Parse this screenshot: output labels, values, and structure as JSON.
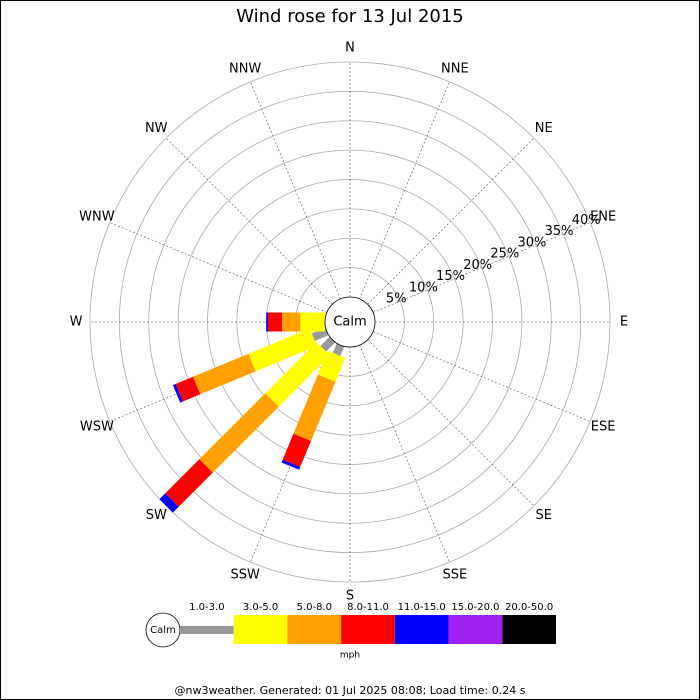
{
  "chart_data": {
    "type": "windrose",
    "title": "Wind rose for 13 Jul 2015",
    "calm_label": "Calm",
    "unit": "mph",
    "footer": "@nw3weather. Generated: 01 Jul 2025 08:08; Load time: 0.24 s",
    "directions": [
      "N",
      "NNE",
      "NE",
      "ENE",
      "E",
      "ESE",
      "SE",
      "SSE",
      "S",
      "SSW",
      "SW",
      "WSW",
      "W",
      "WNW",
      "NW",
      "NNW"
    ],
    "rlim": [
      0,
      40
    ],
    "rticks": [
      {
        "value": 5,
        "label": "5%"
      },
      {
        "value": 10,
        "label": "10%"
      },
      {
        "value": 15,
        "label": "15%"
      },
      {
        "value": 20,
        "label": "20%"
      },
      {
        "value": 25,
        "label": "25%"
      },
      {
        "value": 30,
        "label": "30%"
      },
      {
        "value": 35,
        "label": "35%"
      },
      {
        "value": 40,
        "label": "40%"
      }
    ],
    "series": [
      {
        "name": "1.0-3.0",
        "color": "#999999",
        "values": [
          0,
          0,
          0,
          0,
          0,
          0,
          0,
          0,
          0,
          1.7,
          2.2,
          2.5,
          0,
          0,
          0,
          0
        ]
      },
      {
        "name": "3.0-5.0",
        "color": "#ffff00",
        "values": [
          0,
          0,
          0,
          0,
          0,
          0,
          0,
          0,
          0,
          4.4,
          12.3,
          11.3,
          4.2,
          0,
          0,
          0
        ]
      },
      {
        "name": "5.0-8.0",
        "color": "#ffa000",
        "values": [
          0,
          0,
          0,
          0,
          0,
          0,
          0,
          0,
          0,
          10.9,
          15.9,
          10.2,
          3.1,
          0,
          0,
          0
        ]
      },
      {
        "name": "8.0-11.0",
        "color": "#ff0000",
        "values": [
          0,
          0,
          0,
          0,
          0,
          0,
          0,
          0,
          0,
          4.8,
          8.2,
          3.2,
          2.4,
          0,
          0,
          0
        ]
      },
      {
        "name": "11.0-15.0",
        "color": "#0000ff",
        "values": [
          0,
          0,
          0,
          0,
          0,
          0,
          0,
          0,
          0,
          0.5,
          1.4,
          0.5,
          0.3,
          0,
          0,
          0
        ]
      },
      {
        "name": "15.0-20.0",
        "color": "#a020f0",
        "values": [
          0,
          0,
          0,
          0,
          0,
          0,
          0,
          0,
          0,
          0,
          0,
          0,
          0,
          0,
          0,
          0
        ]
      },
      {
        "name": "20.0-50.0",
        "color": "#000000",
        "values": [
          0,
          0,
          0,
          0,
          0,
          0,
          0,
          0,
          0,
          0,
          0,
          0,
          0,
          0,
          0,
          0
        ]
      }
    ]
  }
}
